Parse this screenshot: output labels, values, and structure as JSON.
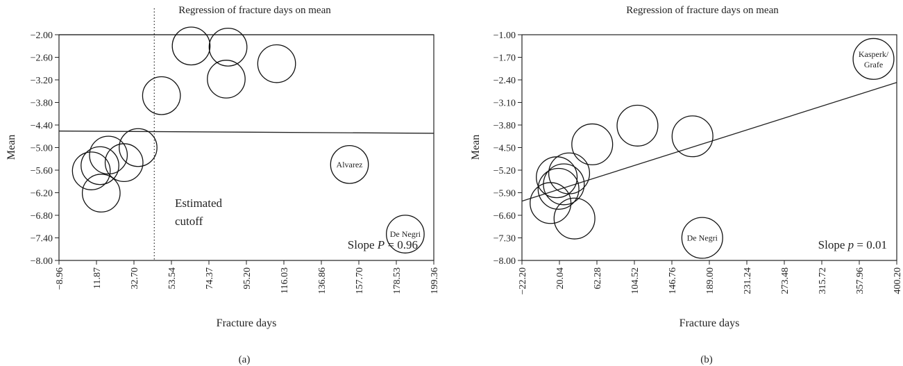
{
  "chart_data": [
    {
      "type": "scatter",
      "panel_label": "(a)",
      "title": "Regression of fracture days on mean",
      "xlabel": "Fracture days",
      "ylabel": "Mean",
      "xlim": [
        -8.96,
        199.36
      ],
      "ylim": [
        -8.0,
        -2.0
      ],
      "x_ticks": [
        "−8.96",
        "11.87",
        "32.70",
        "53.54",
        "74.37",
        "95.20",
        "116.03",
        "136.86",
        "157.70",
        "178.53",
        "199.36"
      ],
      "y_ticks": [
        "−2.00",
        "−2.60",
        "−3.20",
        "−3.80",
        "−4.40",
        "−5.00",
        "−5.60",
        "−6.20",
        "−6.80",
        "−7.40",
        "−8.00"
      ],
      "bubble_radius_days": 10.5,
      "points": [
        {
          "x": 9.0,
          "y": -5.62,
          "label": ""
        },
        {
          "x": 13.8,
          "y": -5.48,
          "label": ""
        },
        {
          "x": 18.5,
          "y": -5.2,
          "label": ""
        },
        {
          "x": 14.5,
          "y": -6.21,
          "label": ""
        },
        {
          "x": 27.2,
          "y": -5.4,
          "label": ""
        },
        {
          "x": 35.0,
          "y": -5.0,
          "label": ""
        },
        {
          "x": 48.0,
          "y": -3.62,
          "label": ""
        },
        {
          "x": 64.5,
          "y": -2.3,
          "label": ""
        },
        {
          "x": 85.0,
          "y": -2.33,
          "label": ""
        },
        {
          "x": 84.0,
          "y": -3.18,
          "label": ""
        },
        {
          "x": 112.0,
          "y": -2.77,
          "label": ""
        },
        {
          "x": 152.5,
          "y": -5.45,
          "label": "Alvarez"
        },
        {
          "x": 183.5,
          "y": -7.3,
          "label": "De Negri"
        }
      ],
      "regression": [
        {
          "x": -8.96,
          "y": -4.56
        },
        {
          "x": 199.36,
          "y": -4.62
        }
      ],
      "hline_y": -2.0,
      "cutoff_x": 44.0,
      "cutoff_label": [
        "Estimated",
        "cutoff"
      ],
      "slope_note": {
        "prefix": "Slope ",
        "var": "P",
        "suffix": " = 0.96"
      }
    },
    {
      "type": "scatter",
      "panel_label": "(b)",
      "title": "Regression of fracture days on mean",
      "xlabel": "Fracture days",
      "ylabel": "Mean",
      "xlim": [
        -22.2,
        400.2
      ],
      "ylim": [
        -8.0,
        -1.0
      ],
      "x_ticks": [
        "−22.20",
        "20.04",
        "62.28",
        "104.52",
        "146.76",
        "189.00",
        "231.24",
        "273.48",
        "315.72",
        "357.96",
        "400.20"
      ],
      "y_ticks": [
        "−1.00",
        "−1.70",
        "−2.40",
        "−3.10",
        "−3.80",
        "−4.50",
        "−5.20",
        "−5.90",
        "−6.60",
        "−7.30",
        "−8.00"
      ],
      "bubble_radius_days": 23,
      "points": [
        {
          "x": 17.0,
          "y": -5.42,
          "label": ""
        },
        {
          "x": 31.0,
          "y": -5.3,
          "label": ""
        },
        {
          "x": 25.0,
          "y": -5.64,
          "label": ""
        },
        {
          "x": 19.0,
          "y": -5.78,
          "label": ""
        },
        {
          "x": 10.0,
          "y": -6.22,
          "label": ""
        },
        {
          "x": 37.0,
          "y": -6.7,
          "label": ""
        },
        {
          "x": 57.0,
          "y": -4.4,
          "label": ""
        },
        {
          "x": 108.0,
          "y": -3.82,
          "label": ""
        },
        {
          "x": 170.0,
          "y": -4.15,
          "label": ""
        },
        {
          "x": 181.0,
          "y": -7.3,
          "label": "De Negri"
        },
        {
          "x": 374.0,
          "y": -1.75,
          "label": "Kasperk/Grafe"
        }
      ],
      "regression": [
        {
          "x": -22.2,
          "y": -6.16
        },
        {
          "x": 400.2,
          "y": -2.48
        }
      ],
      "slope_note": {
        "prefix": "Slope ",
        "var": "p",
        "suffix": " = 0.01"
      }
    }
  ]
}
